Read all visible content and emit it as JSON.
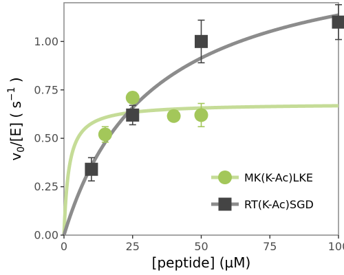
{
  "chart_data": {
    "type": "scatter",
    "title": "",
    "xlabel": "[peptide] (µM)",
    "ylabel": {
      "main": "v",
      "sub": "0",
      "rest": "/[E] ( s",
      "sup": "−1",
      "close": " )"
    },
    "xlim": [
      0,
      100
    ],
    "ylim": [
      0,
      1.2
    ],
    "x_ticks": [
      0,
      25,
      50,
      75,
      100
    ],
    "x_tick_labels": [
      "0",
      "25",
      "50",
      "75",
      "100"
    ],
    "y_ticks": [
      0,
      0.25,
      0.5,
      0.75,
      1.0
    ],
    "y_tick_labels": [
      "0.00",
      "0.25",
      "0.50",
      "0.75",
      "1.00"
    ],
    "grid": false,
    "legend_position": "bottom-right",
    "series": [
      {
        "name": "MK(K-Ac)LKE",
        "marker": "circle",
        "color": "#a3c75a",
        "fit_color": "#c5dc97",
        "fit": {
          "model": "michaelis-menten",
          "vmax": 0.68,
          "km": 1.8
        },
        "points": [
          {
            "x": 15,
            "y": 0.52,
            "err": 0.04
          },
          {
            "x": 25,
            "y": 0.71,
            "err": 0.0
          },
          {
            "x": 40,
            "y": 0.615,
            "err": 0.0
          },
          {
            "x": 50,
            "y": 0.62,
            "err": 0.06
          }
        ]
      },
      {
        "name": "RT(K-Ac)SGD",
        "marker": "square",
        "color": "#444444",
        "fit_color": "#8c8c8c",
        "fit": {
          "model": "michaelis-menten",
          "vmax": 1.5,
          "km": 32
        },
        "points": [
          {
            "x": 10,
            "y": 0.34,
            "err": 0.06
          },
          {
            "x": 25,
            "y": 0.62,
            "err": 0.05
          },
          {
            "x": 50,
            "y": 1.0,
            "err": 0.11
          },
          {
            "x": 100,
            "y": 1.1,
            "err": 0.09
          }
        ]
      }
    ]
  }
}
